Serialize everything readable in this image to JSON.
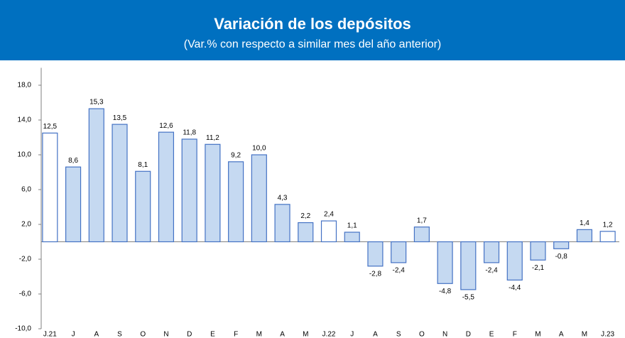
{
  "chart_data": {
    "type": "bar",
    "title": "Variación de los depósitos",
    "subtitle": "(Var.% con respecto a similar mes del año anterior)",
    "categories": [
      "J.21",
      "J",
      "A",
      "S",
      "O",
      "N",
      "D",
      "E",
      "F",
      "M",
      "A",
      "M",
      "J.22",
      "J",
      "A",
      "S",
      "O",
      "N",
      "D",
      "E",
      "F",
      "M",
      "A",
      "M",
      "J.23"
    ],
    "values": [
      12.5,
      8.6,
      15.3,
      13.5,
      8.1,
      12.6,
      11.8,
      11.2,
      9.2,
      10.0,
      4.3,
      2.2,
      2.4,
      1.1,
      -2.8,
      -2.4,
      1.7,
      -4.8,
      -5.5,
      -2.4,
      -4.4,
      -2.1,
      -0.8,
      1.4,
      1.2
    ],
    "value_labels": [
      "12,5",
      "8,6",
      "15,3",
      "13,5",
      "8,1",
      "12,6",
      "11,8",
      "11,2",
      "9,2",
      "10,0",
      "4,3",
      "2,2",
      "2,4",
      "1,1",
      "-2,8",
      "-2,4",
      "1,7",
      "-4,8",
      "-5,5",
      "-2,4",
      "-4,4",
      "-2,1",
      "-0,8",
      "1,4",
      "1,2"
    ],
    "colors": [
      "#ffffff",
      "#c5d9f1",
      "#c5d9f1",
      "#c5d9f1",
      "#c5d9f1",
      "#c5d9f1",
      "#c5d9f1",
      "#c5d9f1",
      "#c5d9f1",
      "#c5d9f1",
      "#c5d9f1",
      "#c5d9f1",
      "#ffffff",
      "#c5d9f1",
      "#c5d9f1",
      "#c5d9f1",
      "#c5d9f1",
      "#c5d9f1",
      "#c5d9f1",
      "#c5d9f1",
      "#c5d9f1",
      "#c5d9f1",
      "#c5d9f1",
      "#c5d9f1",
      "#ffffff"
    ],
    "edge_color": "#4472c4",
    "ylim": [
      -10,
      20
    ],
    "yticks": [
      {
        "value": -10,
        "label": "-10,0"
      },
      {
        "value": -6,
        "label": "-6,0"
      },
      {
        "value": -2,
        "label": "-2,0"
      },
      {
        "value": 2,
        "label": "2,0"
      },
      {
        "value": 6,
        "label": "6,0"
      },
      {
        "value": 10,
        "label": "10,0"
      },
      {
        "value": 14,
        "label": "14,0"
      },
      {
        "value": 18,
        "label": "18,0"
      }
    ],
    "grid": false
  }
}
